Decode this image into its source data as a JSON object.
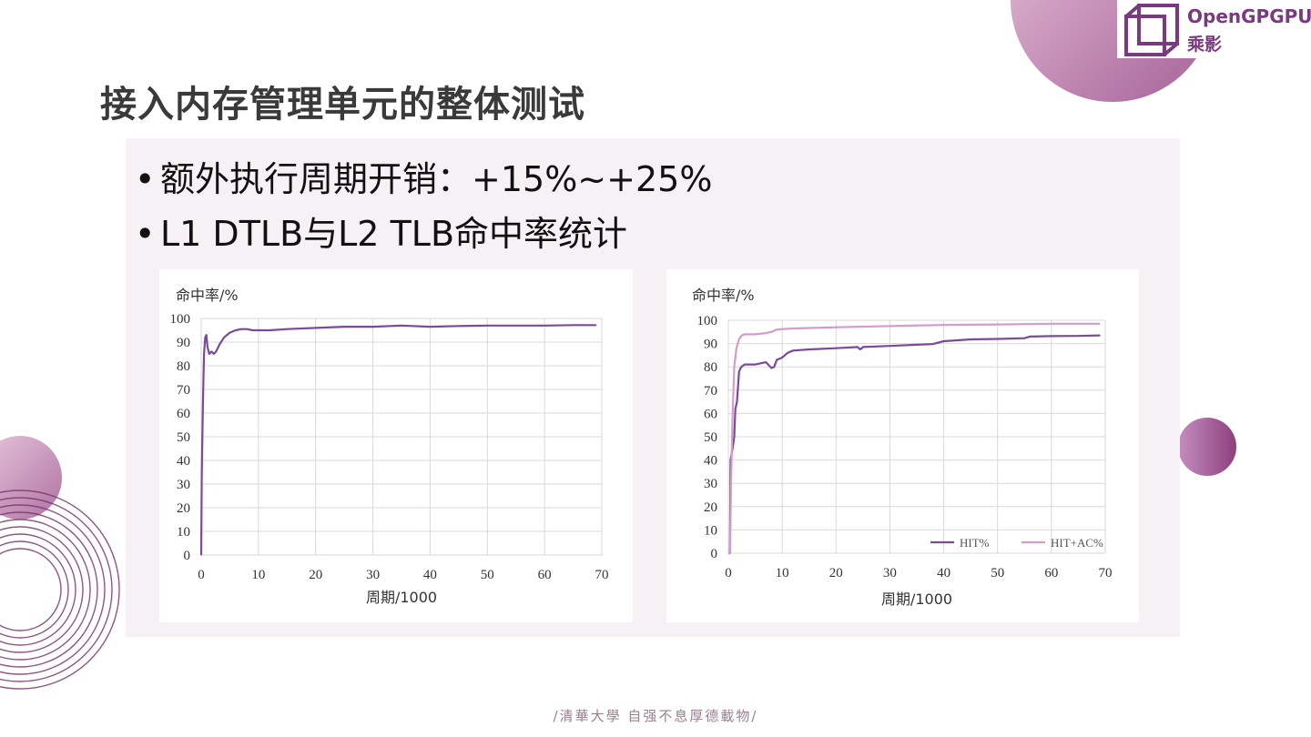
{
  "slide": {
    "title": "接入内存管理单元的整体测试",
    "bullets": [
      "额外执行周期开销：+15%~+25%",
      "L1 DTLB与L2 TLB命中率统计"
    ],
    "bullet_marker": "•",
    "footer": "/清華大學 自强不息厚德載物/"
  },
  "logo": {
    "name": "OpenGPGPU",
    "cn": "乘影",
    "icon": "cube-icon",
    "color": "#7a3a7e"
  },
  "colors": {
    "accent": "#7b4a9a",
    "series_hit": "#7b4a9a",
    "series_hit_ac": "#d49ccc",
    "panel_bg": "#f6f1f5",
    "deco_circle": "#b06aa0"
  },
  "chart_data": [
    {
      "type": "line",
      "ylabel": "命中率/%",
      "xlabel": "周期/1000",
      "xlim": [
        0,
        70
      ],
      "ylim": [
        0,
        100
      ],
      "x_ticks": [
        0,
        10,
        20,
        30,
        40,
        50,
        60,
        70
      ],
      "y_ticks": [
        0,
        10,
        20,
        30,
        40,
        50,
        60,
        70,
        80,
        90,
        100
      ],
      "grid": true,
      "legend": "none",
      "series": [
        {
          "color": "#7b4a9a",
          "points": [
            [
              0,
              0
            ],
            [
              0.1,
              33
            ],
            [
              0.2,
              50
            ],
            [
              0.35,
              70
            ],
            [
              0.5,
              85
            ],
            [
              0.7,
              92
            ],
            [
              0.9,
              93
            ],
            [
              1.1,
              88
            ],
            [
              1.4,
              85
            ],
            [
              1.8,
              86
            ],
            [
              2.2,
              85
            ],
            [
              2.6,
              86
            ],
            [
              3.2,
              89
            ],
            [
              4,
              92
            ],
            [
              5,
              94
            ],
            [
              6,
              95
            ],
            [
              7,
              95.5
            ],
            [
              8,
              95.5
            ],
            [
              9,
              95
            ],
            [
              10,
              95
            ],
            [
              12,
              95
            ],
            [
              15,
              95.5
            ],
            [
              20,
              96
            ],
            [
              25,
              96.5
            ],
            [
              30,
              96.5
            ],
            [
              35,
              97
            ],
            [
              40,
              96.5
            ],
            [
              45,
              96.8
            ],
            [
              50,
              97
            ],
            [
              55,
              97
            ],
            [
              60,
              97
            ],
            [
              65,
              97.2
            ],
            [
              69,
              97.2
            ]
          ]
        }
      ]
    },
    {
      "type": "line",
      "ylabel": "命中率/%",
      "xlabel": "周期/1000",
      "xlim": [
        0,
        70
      ],
      "ylim": [
        0,
        100
      ],
      "x_ticks": [
        0,
        10,
        20,
        30,
        40,
        50,
        60,
        70
      ],
      "y_ticks": [
        0,
        10,
        20,
        30,
        40,
        50,
        60,
        70,
        80,
        90,
        100
      ],
      "grid": true,
      "legend": "bottom-right",
      "series": [
        {
          "name": "HIT%",
          "color": "#7b4a9a",
          "points": [
            [
              0,
              0
            ],
            [
              0.3,
              0
            ],
            [
              0.4,
              40
            ],
            [
              0.8,
              45
            ],
            [
              1.1,
              50
            ],
            [
              1.3,
              62
            ],
            [
              1.6,
              65
            ],
            [
              2,
              78
            ],
            [
              2.4,
              80
            ],
            [
              3,
              81
            ],
            [
              5,
              81
            ],
            [
              7,
              82
            ],
            [
              8,
              79.5
            ],
            [
              8.5,
              80
            ],
            [
              9,
              83
            ],
            [
              10,
              84
            ],
            [
              11,
              86
            ],
            [
              12,
              87
            ],
            [
              15,
              87.5
            ],
            [
              20,
              88
            ],
            [
              24,
              88.5
            ],
            [
              24.5,
              87.5
            ],
            [
              25,
              88.5
            ],
            [
              30,
              89
            ],
            [
              35,
              89.5
            ],
            [
              38,
              89.8
            ],
            [
              40,
              91
            ],
            [
              45,
              91.8
            ],
            [
              50,
              92
            ],
            [
              55,
              92.3
            ],
            [
              56,
              93
            ],
            [
              60,
              93.2
            ],
            [
              65,
              93.3
            ],
            [
              69,
              93.5
            ]
          ]
        },
        {
          "name": "HIT+AC%",
          "color": "#d49ccc",
          "points": [
            [
              0,
              0
            ],
            [
              0.3,
              0
            ],
            [
              0.5,
              30
            ],
            [
              0.8,
              60
            ],
            [
              1.1,
              80
            ],
            [
              1.5,
              88
            ],
            [
              2,
              92
            ],
            [
              2.5,
              93.5
            ],
            [
              3,
              94
            ],
            [
              5,
              94
            ],
            [
              7,
              94.5
            ],
            [
              8,
              95
            ],
            [
              9,
              96
            ],
            [
              10,
              96.2
            ],
            [
              12,
              96.5
            ],
            [
              20,
              97
            ],
            [
              30,
              97.5
            ],
            [
              40,
              98
            ],
            [
              50,
              98.2
            ],
            [
              60,
              98.5
            ],
            [
              69,
              98.5
            ]
          ]
        }
      ]
    }
  ]
}
